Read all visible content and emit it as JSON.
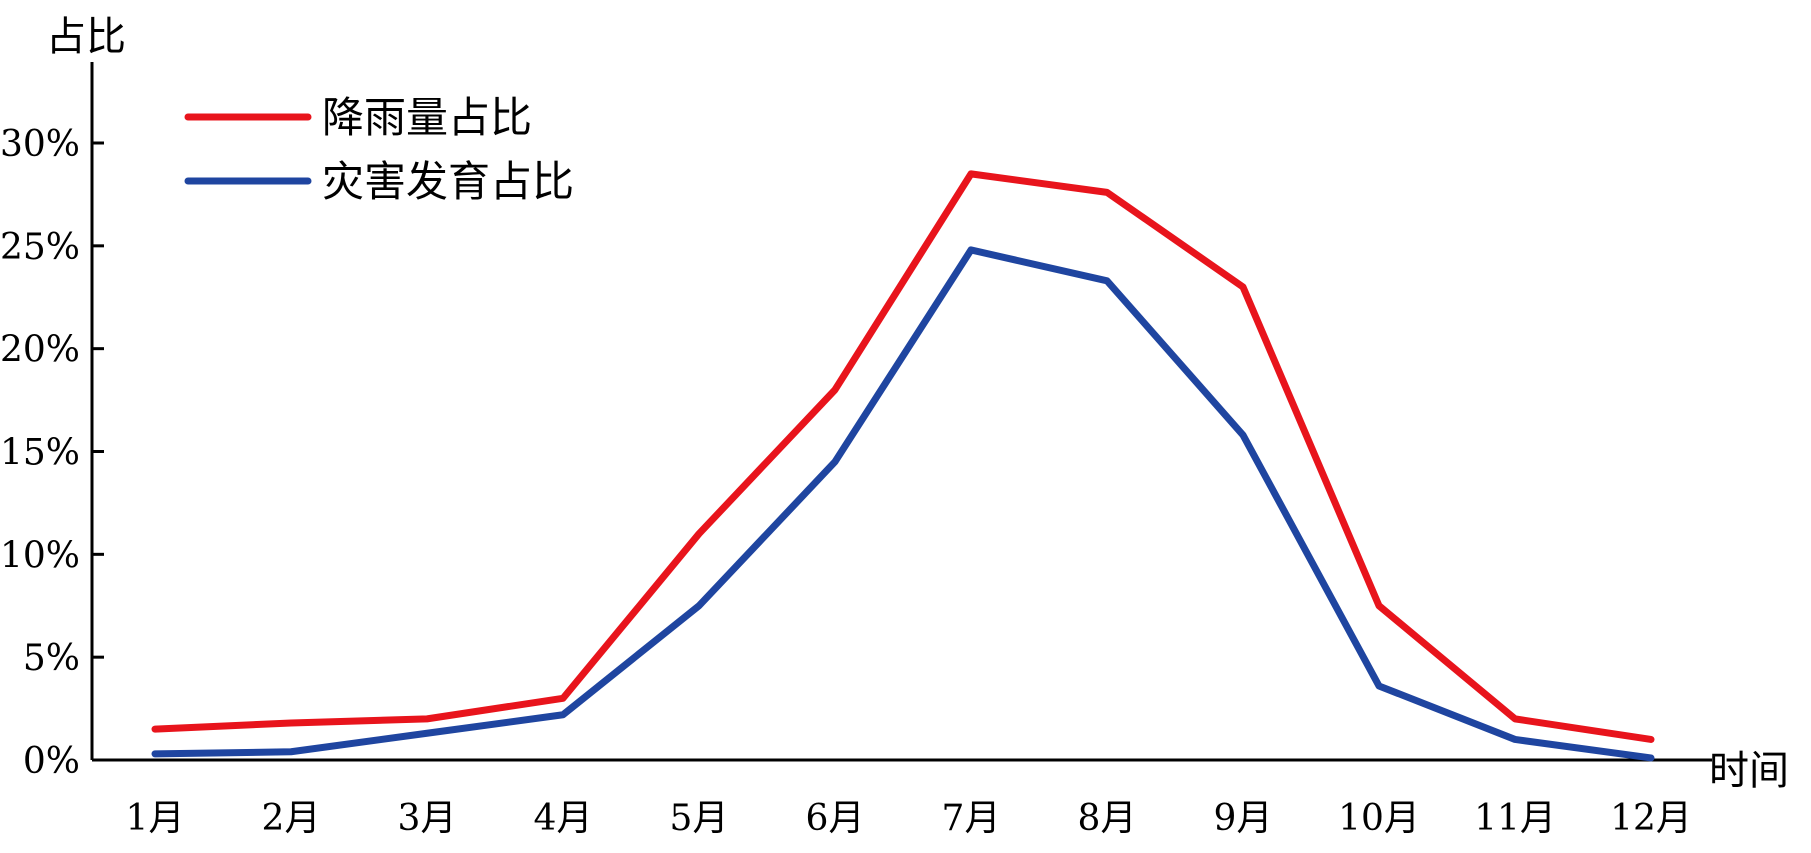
{
  "chart_data": {
    "type": "line",
    "title": "",
    "ylabel": "占比",
    "xlabel": "时间",
    "categories": [
      "1月",
      "2月",
      "3月",
      "4月",
      "5月",
      "6月",
      "7月",
      "8月",
      "9月",
      "10月",
      "11月",
      "12月"
    ],
    "yticks": [
      "0%",
      "5%",
      "10%",
      "15%",
      "20%",
      "25%",
      "30%"
    ],
    "ylim": [
      0,
      30
    ],
    "grid": false,
    "legend_position": "top-left",
    "series": [
      {
        "name": "降雨量占比",
        "color": "#e8141c",
        "values": [
          1.5,
          1.8,
          2.0,
          3.0,
          11.0,
          18.0,
          28.5,
          27.6,
          23.0,
          7.5,
          2.0,
          1.0
        ]
      },
      {
        "name": "灾害发育占比",
        "color": "#1f45a0",
        "values": [
          0.3,
          0.4,
          1.3,
          2.2,
          7.5,
          14.5,
          24.8,
          23.3,
          15.8,
          3.6,
          1.0,
          0.1
        ]
      }
    ]
  }
}
